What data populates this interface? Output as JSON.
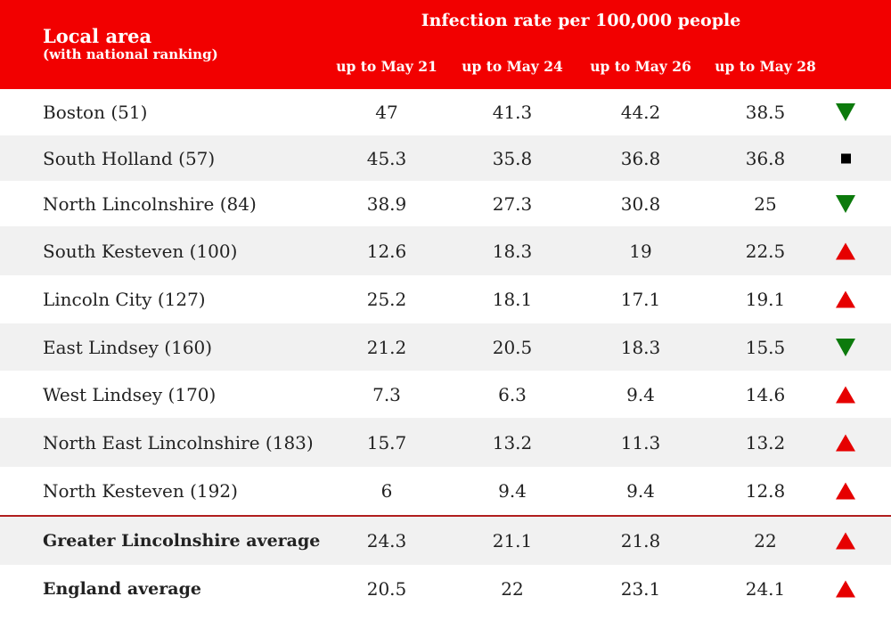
{
  "colors": {
    "header_bg": "#f20000",
    "up": "#e60000",
    "down": "#0c7a0c",
    "same": "#000000",
    "divider": "#b11e1e"
  },
  "header": {
    "local_area": "Local area",
    "ranking_note": "(with national ranking)",
    "metric": "Infection rate per 100,000 people",
    "columns": [
      "up to May 21",
      "up to May 24",
      "up to May 26",
      "up to May 28"
    ]
  },
  "chart_data": {
    "type": "table",
    "columns": [
      "Local area (with national ranking)",
      "up to May 21",
      "up to May 24",
      "up to May 26",
      "up to May 28"
    ],
    "rows": [
      {
        "area": "Boston (51)",
        "values": [
          "47",
          "41.3",
          "44.2",
          "38.5"
        ],
        "trend": "down"
      },
      {
        "area": "South Holland (57)",
        "values": [
          "45.3",
          "35.8",
          "36.8",
          "36.8"
        ],
        "trend": "same"
      },
      {
        "area": "North Lincolnshire (84)",
        "values": [
          "38.9",
          "27.3",
          "30.8",
          "25"
        ],
        "trend": "down"
      },
      {
        "area": "South Kesteven (100)",
        "values": [
          "12.6",
          "18.3",
          "19",
          "22.5"
        ],
        "trend": "up"
      },
      {
        "area": "Lincoln City (127)",
        "values": [
          "25.2",
          "18.1",
          "17.1",
          "19.1"
        ],
        "trend": "up"
      },
      {
        "area": "East Lindsey (160)",
        "values": [
          "21.2",
          "20.5",
          "18.3",
          "15.5"
        ],
        "trend": "down"
      },
      {
        "area": "West Lindsey (170)",
        "values": [
          "7.3",
          "6.3",
          "9.4",
          "14.6"
        ],
        "trend": "up"
      },
      {
        "area": "North East Lincolnshire (183)",
        "values": [
          "15.7",
          "13.2",
          "11.3",
          "13.2"
        ],
        "trend": "up"
      },
      {
        "area": "North Kesteven (192)",
        "values": [
          "6",
          "9.4",
          "9.4",
          "12.8"
        ],
        "trend": "up"
      },
      {
        "area": "Greater Lincolnshire average",
        "values": [
          "24.3",
          "21.1",
          "21.8",
          "22"
        ],
        "trend": "up",
        "bold": true
      },
      {
        "area": "England average",
        "values": [
          "20.5",
          "22",
          "23.1",
          "24.1"
        ],
        "trend": "up",
        "bold": true
      }
    ]
  }
}
